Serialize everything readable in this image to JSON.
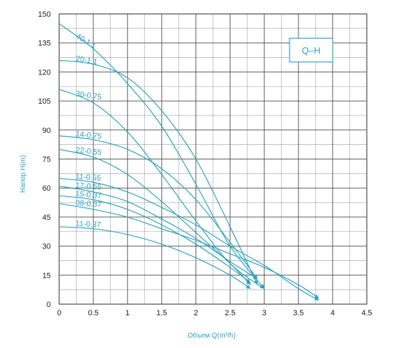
{
  "colors": {
    "curve": "#2aa3c3",
    "grid": "#4a4a4a",
    "text": "#1a1a1a",
    "label": "#2aa3c3"
  },
  "chart_data": {
    "type": "line",
    "badge": "Q–H",
    "xlabel": "Объем Q(m³/h)",
    "ylabel": "Напор H(m)",
    "xlim": [
      0,
      4.5
    ],
    "ylim": [
      0,
      150
    ],
    "xticks": [
      "0",
      "0.5",
      "1",
      "1.5",
      "2",
      "2.5",
      "3",
      "3.5",
      "4",
      "4.5"
    ],
    "yticks": [
      "0",
      "15",
      "30",
      "45",
      "60",
      "75",
      "90",
      "105",
      "120",
      "135",
      "150"
    ],
    "grid": true,
    "legend": "inline-labels",
    "series": [
      {
        "name": "40-1.1",
        "x": [
          0,
          0.5,
          1.0,
          1.5,
          2.0,
          2.5,
          3.0
        ],
        "y": [
          145,
          132,
          114,
          92,
          62,
          30,
          8
        ]
      },
      {
        "name": "20-1.1",
        "x": [
          0,
          0.5,
          1.0,
          1.5,
          2.0,
          2.5,
          2.9
        ],
        "y": [
          126,
          124,
          117,
          100,
          75,
          40,
          10
        ]
      },
      {
        "name": "30-0.75",
        "x": [
          0,
          0.5,
          1.0,
          1.5,
          2.0,
          2.5,
          3.0
        ],
        "y": [
          111,
          104,
          89,
          67,
          43,
          21,
          8
        ]
      },
      {
        "name": "14-0.75",
        "x": [
          0,
          0.5,
          1.0,
          1.5,
          2.0,
          2.5,
          2.9
        ],
        "y": [
          87,
          85,
          80,
          70,
          54,
          32,
          13
        ]
      },
      {
        "name": "22-0.55",
        "x": [
          0,
          0.5,
          1.0,
          1.5,
          2.0,
          2.5,
          2.8
        ],
        "y": [
          80,
          76,
          67,
          53,
          37,
          21,
          10
        ]
      },
      {
        "name": "11-0.55",
        "x": [
          0,
          0.5,
          1.0,
          1.5,
          2.0,
          2.5,
          3.0,
          3.5,
          3.8
        ],
        "y": [
          65,
          63,
          58,
          50,
          41,
          30,
          20,
          8,
          2
        ]
      },
      {
        "name": "17-0.55",
        "x": [
          0,
          0.5,
          1.0,
          1.5,
          2.0,
          2.5,
          2.9
        ],
        "y": [
          61,
          58,
          53,
          44,
          34,
          22,
          13
        ]
      },
      {
        "name": "15-0.37",
        "x": [
          0,
          0.5,
          1.0,
          1.5,
          2.0,
          2.5,
          2.8
        ],
        "y": [
          56,
          54,
          49,
          41,
          31,
          19,
          11
        ]
      },
      {
        "name": "08-0.37",
        "x": [
          0,
          0.5,
          1.0,
          1.5,
          2.0,
          2.5,
          3.0,
          3.5,
          3.8
        ],
        "y": [
          52,
          49,
          45,
          39,
          33,
          26,
          19,
          10,
          3
        ]
      },
      {
        "name": "11-0.37",
        "x": [
          0,
          0.5,
          1.0,
          1.5,
          2.0,
          2.5,
          2.8
        ],
        "y": [
          40,
          39,
          36,
          31,
          24,
          15,
          8
        ]
      }
    ]
  }
}
